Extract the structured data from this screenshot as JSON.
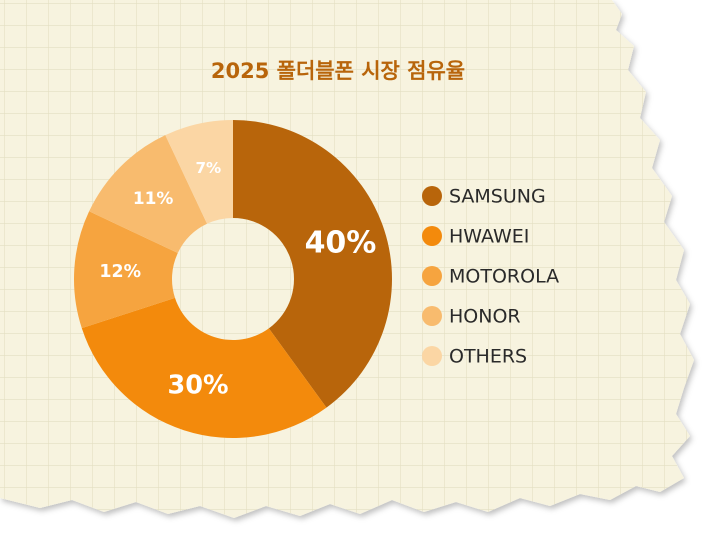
{
  "chart_data": {
    "type": "pie",
    "title": "2025 폴더블폰 시장 점유율",
    "categories": [
      "SAMSUNG",
      "HWAWEI",
      "MOTOROLA",
      "HONOR",
      "OTHERS"
    ],
    "values": [
      40,
      30,
      12,
      11,
      7
    ],
    "value_labels": [
      "40%",
      "30%",
      "12%",
      "11%",
      "7%"
    ],
    "colors": [
      "#b8650b",
      "#f38a0c",
      "#f6a43f",
      "#f8bb6e",
      "#fbd6a4"
    ],
    "legend": "right"
  }
}
